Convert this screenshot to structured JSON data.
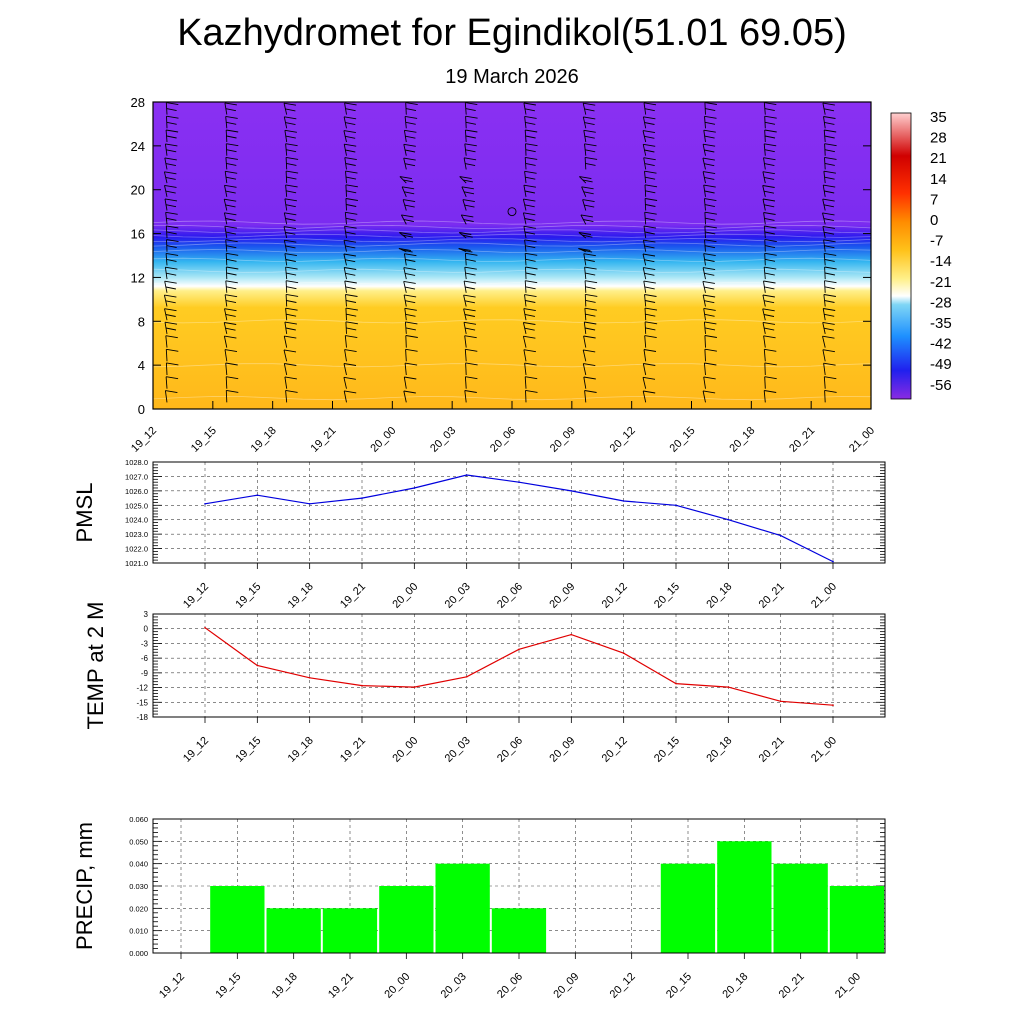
{
  "title": "Kazhydromet for Egindikol(51.01 69.05)",
  "subtitle": "19 March 2026",
  "colors": {
    "pmsl_line": "#0000dd",
    "temp_line": "#e00000",
    "precip_bar": "#00ff00",
    "cold": "#8a2be2",
    "warm": "#ffc21a"
  },
  "chart_data": [
    {
      "type": "heatmap",
      "name": "wind-temperature-cross-section",
      "categories": [
        "19_12",
        "19_15",
        "19_18",
        "19_21",
        "20_00",
        "20_03",
        "20_06",
        "20_09",
        "20_12",
        "20_15",
        "20_18",
        "20_21",
        "21_00"
      ],
      "yticks": [
        "0",
        "4",
        "8",
        "12",
        "16",
        "20",
        "24",
        "28"
      ],
      "ylim": [
        0,
        28
      ],
      "colorbar_labels": [
        "35",
        "28",
        "21",
        "14",
        "7",
        "0",
        "-7",
        "-14",
        "-21",
        "-28",
        "-35",
        "-42",
        "-49",
        "-56"
      ],
      "layers": [
        {
          "height": 0,
          "temp": -7
        },
        {
          "height": 11,
          "temp": -10
        },
        {
          "height": 12,
          "temp": -21
        },
        {
          "height": 14,
          "temp": -35
        },
        {
          "height": 16,
          "temp": -52
        },
        {
          "height": 17.5,
          "temp": -58
        },
        {
          "height": 28,
          "temp": -60
        }
      ]
    },
    {
      "type": "line",
      "name": "pmsl",
      "ylabel": "PMSL",
      "categories": [
        "19_12",
        "19_15",
        "19_18",
        "19_21",
        "20_00",
        "20_03",
        "20_06",
        "20_09",
        "20_12",
        "20_15",
        "20_18",
        "20_21",
        "21_00"
      ],
      "values": [
        1025.1,
        1025.7,
        1025.1,
        1025.5,
        1026.2,
        1027.1,
        1026.6,
        1026.0,
        1025.3,
        1025.0,
        1024.0,
        1022.9,
        1021.1
      ],
      "ylim": [
        1021.0,
        1028.0
      ],
      "yticks": [
        "1021.0",
        "1022.0",
        "1023.0",
        "1024.0",
        "1025.0",
        "1026.0",
        "1027.0",
        "1028.0"
      ]
    },
    {
      "type": "line",
      "name": "temp2m",
      "ylabel": "TEMP at 2 M",
      "categories": [
        "19_12",
        "19_15",
        "19_18",
        "19_21",
        "20_00",
        "20_03",
        "20_06",
        "20_09",
        "20_12",
        "20_15",
        "20_18",
        "20_21",
        "21_00"
      ],
      "values": [
        0.2,
        -7.5,
        -10.0,
        -11.6,
        -11.9,
        -9.8,
        -4.2,
        -1.2,
        -5.0,
        -11.2,
        -11.9,
        -14.8,
        -15.6
      ],
      "ylim": [
        -18,
        3
      ],
      "yticks": [
        "-18",
        "-15",
        "-12",
        "-9",
        "-6",
        "-3",
        "0",
        "3"
      ]
    },
    {
      "type": "bar",
      "name": "precip",
      "ylabel": "PRECIP, mm",
      "categories": [
        "19_12",
        "19_15",
        "19_18",
        "19_21",
        "20_00",
        "20_03",
        "20_06",
        "20_09",
        "20_12",
        "20_15",
        "20_18",
        "20_21",
        "21_00"
      ],
      "values": [
        0,
        0.03,
        0.02,
        0.02,
        0.03,
        0.04,
        0.02,
        0,
        0,
        0.04,
        0.05,
        0.04,
        0.03
      ],
      "ylim": [
        0,
        0.06
      ],
      "yticks": [
        "0.000",
        "0.010",
        "0.020",
        "0.030",
        "0.040",
        "0.050",
        "0.060"
      ]
    }
  ]
}
